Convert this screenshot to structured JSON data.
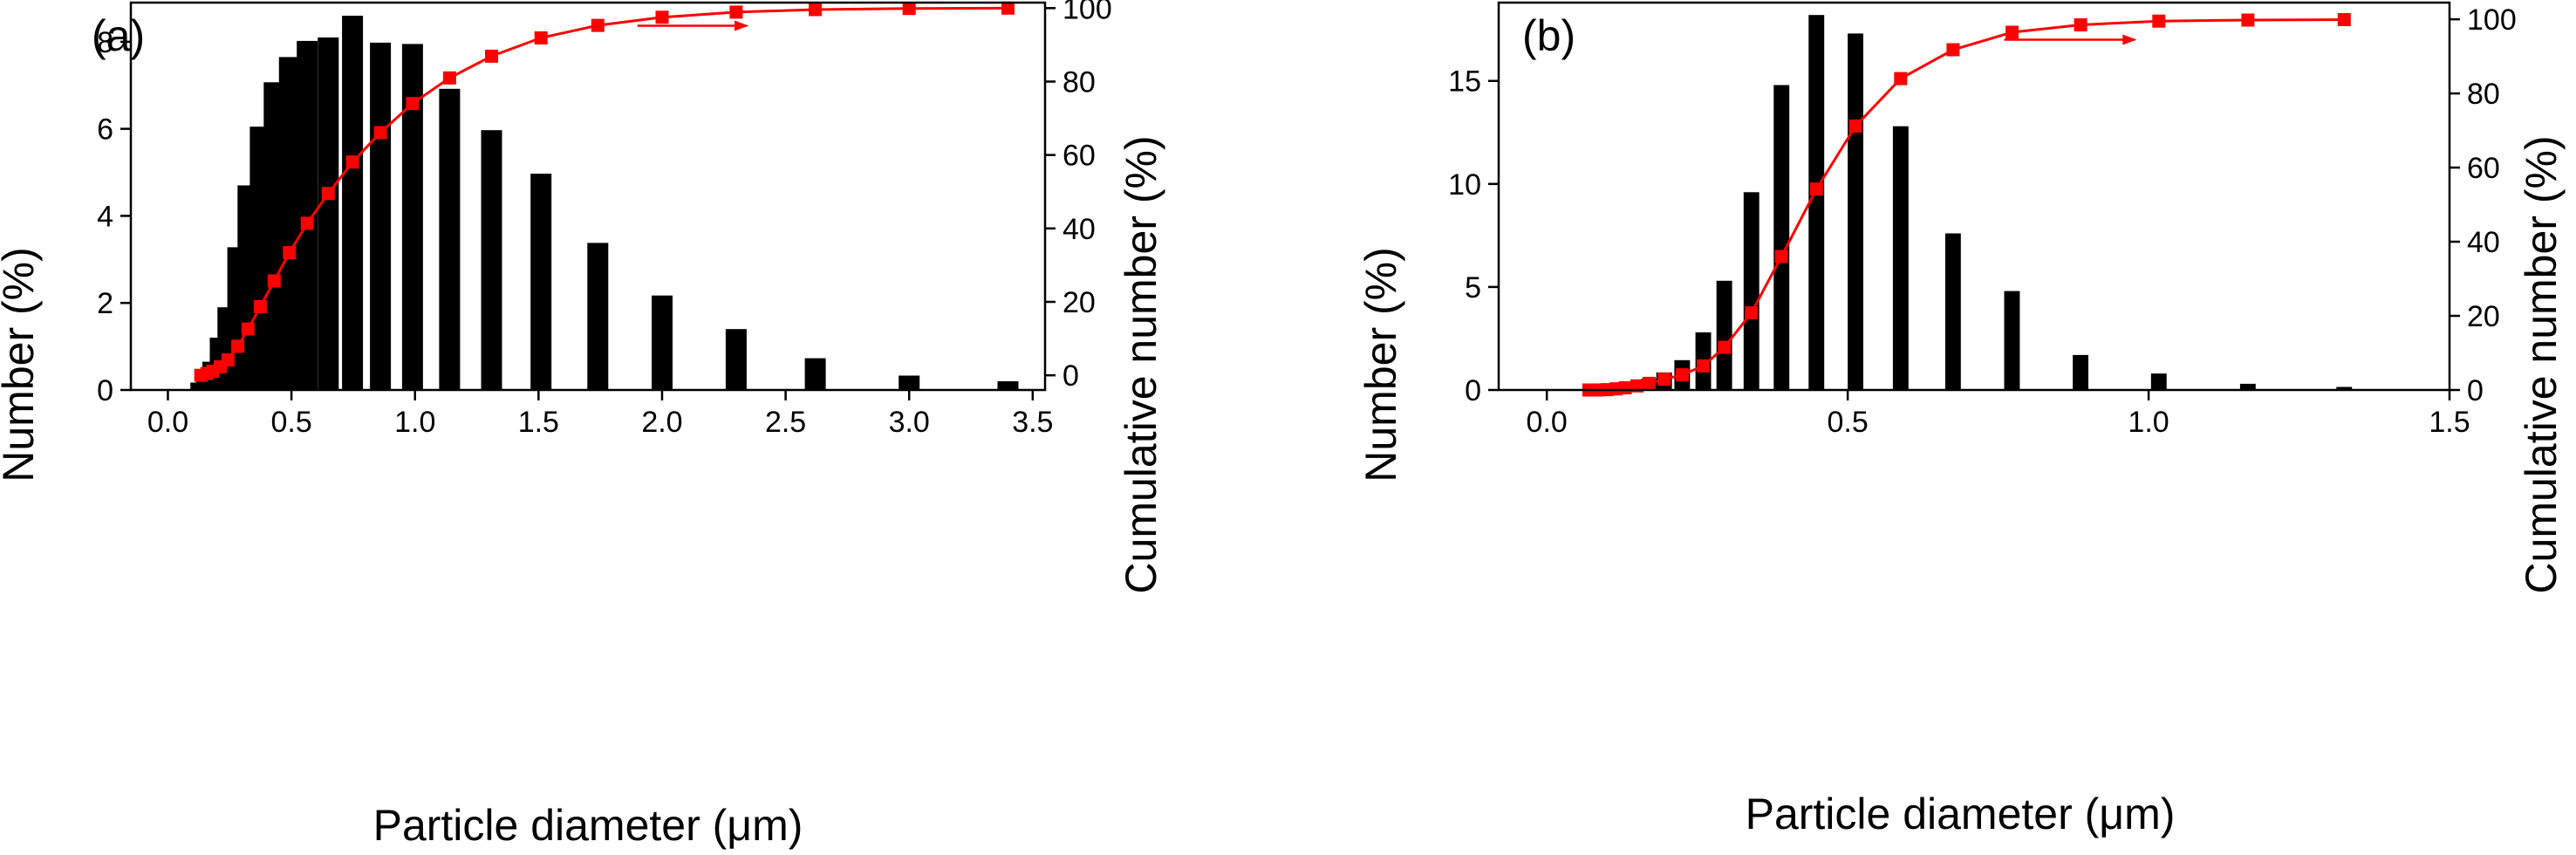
{
  "chart_data": [
    {
      "type": "bar",
      "panel_label": "(a)",
      "xlabel": "Particle diameter (μm)",
      "ylabel": "Number (%)",
      "y2label": "Cumulative number (%)",
      "xlim": [
        -0.15,
        3.55
      ],
      "ylim": [
        0,
        8.9
      ],
      "y2lim": [
        -4,
        101.5
      ],
      "xticks": [
        0.0,
        0.5,
        1.0,
        1.5,
        2.0,
        2.5,
        3.0,
        3.5
      ],
      "xtick_labels": [
        "0.0",
        "0.5",
        "1.0",
        "1.5",
        "2.0",
        "2.5",
        "3.0",
        "3.5"
      ],
      "yticks": [
        0,
        2,
        4,
        6,
        8
      ],
      "ytick_labels": [
        "0",
        "2",
        "4",
        "6",
        "8"
      ],
      "y2ticks": [
        0,
        20,
        40,
        60,
        80,
        100
      ],
      "y2tick_labels": [
        "0",
        "20",
        "40",
        "60",
        "80",
        "100"
      ],
      "colors": {
        "bars": "#000000",
        "cumulative": "#ff0000"
      },
      "bars": {
        "name": "Number",
        "x": [
          0.133,
          0.158,
          0.182,
          0.212,
          0.243,
          0.283,
          0.324,
          0.374,
          0.43,
          0.492,
          0.564,
          0.649,
          0.747,
          0.86,
          0.99,
          1.14,
          1.31,
          1.51,
          1.74,
          2.0,
          2.3,
          2.62,
          3.0,
          3.4
        ],
        "values": [
          0.17,
          0.35,
          0.65,
          1.2,
          1.9,
          3.28,
          4.7,
          6.05,
          7.07,
          7.65,
          8.02,
          8.1,
          8.6,
          7.98,
          7.95,
          6.92,
          5.97,
          4.97,
          3.38,
          2.17,
          1.4,
          0.73,
          0.33,
          0.2
        ]
      },
      "cumulative": {
        "name": "Cumulative number",
        "x": [
          0.133,
          0.158,
          0.182,
          0.212,
          0.243,
          0.283,
          0.324,
          0.374,
          0.43,
          0.492,
          0.564,
          0.649,
          0.747,
          0.86,
          0.99,
          1.14,
          1.31,
          1.51,
          1.74,
          2.0,
          2.3,
          2.62,
          3.0,
          3.4
        ],
        "values": [
          0,
          0.5,
          1.1,
          2.3,
          4.2,
          7.9,
          12.6,
          18.7,
          25.7,
          33.4,
          41.4,
          49.5,
          58.1,
          66.1,
          74,
          81,
          86.9,
          91.9,
          95.3,
          97.5,
          98.9,
          99.6,
          99.9,
          100
        ]
      },
      "annotation_arrow": {
        "from": [
          1.9,
          95.2
        ],
        "to": [
          2.35,
          95.2
        ]
      }
    },
    {
      "type": "bar",
      "panel_label": "(b)",
      "xlabel": "Particle diameter (μm)",
      "ylabel": "Number (%)",
      "y2label": "Cumulative number (%)",
      "xlim": [
        -0.08,
        1.5
      ],
      "ylim": [
        0,
        18.8
      ],
      "y2lim": [
        0,
        104.5
      ],
      "xticks": [
        0.0,
        0.5,
        1.0,
        1.5
      ],
      "xtick_labels": [
        "0.0",
        "0.5",
        "1.0",
        "1.5"
      ],
      "yticks": [
        0,
        5,
        10,
        15
      ],
      "ytick_labels": [
        "0",
        "5",
        "10",
        "15"
      ],
      "y2ticks": [
        0,
        20,
        40,
        60,
        80,
        100
      ],
      "y2tick_labels": [
        "0",
        "20",
        "40",
        "60",
        "80",
        "100"
      ],
      "colors": {
        "bars": "#000000",
        "cumulative": "#ff0000"
      },
      "bars": {
        "name": "Number",
        "x": [
          0.07,
          0.085,
          0.1,
          0.115,
          0.13,
          0.15,
          0.17,
          0.195,
          0.225,
          0.26,
          0.295,
          0.34,
          0.39,
          0.448,
          0.513,
          0.588,
          0.675,
          0.773,
          0.887,
          1.017,
          1.165,
          1.325
        ],
        "values": [
          0.02,
          0.03,
          0.05,
          0.08,
          0.15,
          0.3,
          0.55,
          0.85,
          1.45,
          2.8,
          5.3,
          9.6,
          14.8,
          18.2,
          17.3,
          12.8,
          7.6,
          4.8,
          1.7,
          0.8,
          0.3,
          0.15
        ],
        "bar_width": 0.026
      },
      "cumulative": {
        "name": "Cumulative number",
        "x": [
          0.07,
          0.085,
          0.1,
          0.115,
          0.13,
          0.15,
          0.17,
          0.195,
          0.225,
          0.26,
          0.295,
          0.34,
          0.39,
          0.448,
          0.513,
          0.588,
          0.675,
          0.773,
          0.887,
          1.017,
          1.165,
          1.325
        ],
        "values": [
          0,
          0,
          0.1,
          0.3,
          0.6,
          1.1,
          1.8,
          2.9,
          4.1,
          6.5,
          11.5,
          20.8,
          36,
          54.2,
          71.2,
          84,
          91.8,
          96.5,
          98.5,
          99.5,
          99.8,
          99.9
        ]
      },
      "annotation_arrow": {
        "from": [
          0.76,
          94.5
        ],
        "to": [
          0.98,
          94.5
        ]
      }
    }
  ]
}
